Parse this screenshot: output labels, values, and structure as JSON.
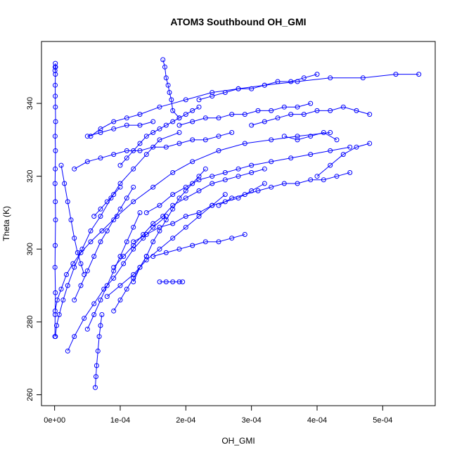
{
  "chart_data": {
    "type": "scatter",
    "title": "ATOM3 Southbound OH_GMI",
    "xlabel": "OH_GMI",
    "ylabel": "Theta (K)",
    "xlim": [
      -2e-05,
      0.00058
    ],
    "ylim": [
      257,
      357
    ],
    "x_ticks": [
      0,
      0.0001,
      0.0002,
      0.0003,
      0.0004,
      0.0005
    ],
    "x_tick_labels": [
      "0e+00",
      "1e-04",
      "2e-04",
      "3e-04",
      "4e-04",
      "5e-04"
    ],
    "y_ticks": [
      260,
      280,
      300,
      320,
      340
    ],
    "y_tick_labels": [
      "260",
      "280",
      "300",
      "320",
      "340"
    ],
    "grid": false,
    "legend": "none",
    "series_color": "#0000ff",
    "series": [
      {
        "x": [
          5e-07,
          8e-07,
          1.2e-06,
          6e-07,
          9e-07,
          1.4e-06,
          1.1e-06,
          7e-07,
          1e-06,
          1.3e-06,
          8e-07,
          1.5e-06,
          1.2e-06,
          1e-06,
          9e-07,
          1.2e-06,
          1.4e-06,
          1.1e-06,
          8e-07,
          6e-07
        ],
        "y": [
          276,
          282,
          288,
          295,
          301,
          308,
          313,
          318,
          322,
          327,
          331,
          335,
          339,
          342,
          345,
          348,
          350,
          351,
          350,
          349
        ]
      },
      {
        "x": [
          8e-07,
          4e-06,
          1e-05,
          1.8e-05,
          2.8e-05,
          4e-05,
          5.5e-05,
          7.2e-05,
          9.5e-05,
          0.00012,
          0.00015,
          0.00018,
          0.00021,
          0.00025,
          0.00029,
          0.00033,
          0.00037,
          0.00042
        ],
        "y": [
          283,
          286,
          289,
          293,
          296,
          299,
          302,
          305,
          309,
          313,
          317,
          321,
          324,
          327,
          329,
          330,
          331,
          332
        ]
      },
      {
        "x": [
          1.2e-06,
          3e-06,
          7e-06,
          1.3e-05,
          2e-05,
          3e-05,
          4.2e-05,
          5.5e-05,
          7e-05,
          8.6e-05,
          0.0001,
          0.00012,
          0.00014,
          0.00016,
          0.00019
        ],
        "y": [
          276,
          279,
          282,
          286,
          290,
          295,
          300,
          305,
          309,
          314,
          318,
          322,
          326,
          330,
          332
        ]
      },
      {
        "x": [
          5.5e-05,
          7e-05,
          9e-05,
          0.00011,
          0.00013,
          0.00016,
          0.0002,
          0.00024,
          0.00028,
          0.00032,
          0.00037,
          0.00042,
          0.00047,
          0.00052,
          0.000555
        ],
        "y": [
          331,
          333,
          335,
          336,
          337,
          339,
          341,
          343,
          344,
          345,
          346,
          347,
          347,
          348,
          348
        ]
      },
      {
        "x": [
          0.000165,
          0.000168,
          0.00017,
          0.000173,
          0.000175,
          0.000178,
          0.00018,
          0.00019
        ],
        "y": [
          352,
          350,
          347,
          345,
          343,
          341,
          338,
          336
        ]
      },
      {
        "x": [
          6.2e-05,
          6.3e-05,
          6.4e-05,
          6.6e-05,
          6.8e-05,
          7e-05,
          7.2e-05
        ],
        "y": [
          262,
          265,
          268,
          272,
          276,
          279,
          282
        ]
      },
      {
        "x": [
          0.00016,
          0.00017,
          0.00018,
          0.00019,
          0.000195
        ],
        "y": [
          291,
          291,
          291,
          291,
          291
        ]
      },
      {
        "x": [
          2e-05,
          3e-05,
          4.5e-05,
          6e-05,
          7.5e-05,
          9e-05,
          0.000105,
          0.00012,
          0.000135,
          0.00015,
          0.00017
        ],
        "y": [
          272,
          276,
          281,
          285,
          289,
          292,
          296,
          300,
          303,
          306,
          309
        ]
      },
      {
        "x": [
          3e-05,
          5e-05,
          7e-05,
          9e-05,
          0.00011,
          0.00013,
          0.00015,
          0.00017,
          0.00019,
          0.00021,
          0.00023,
          0.00025,
          0.00027
        ],
        "y": [
          322,
          324,
          325,
          326,
          327,
          327,
          328,
          328,
          329,
          330,
          330,
          331,
          332
        ]
      },
      {
        "x": [
          0.00012,
          0.00014,
          0.00016,
          0.00018,
          0.0002,
          0.00022,
          0.00024,
          0.00026,
          0.00028,
          0.0003,
          0.00032
        ],
        "y": [
          302,
          304,
          306,
          307,
          309,
          310,
          312,
          313,
          314,
          316,
          318
        ]
      },
      {
        "x": [
          9e-05,
          0.000105,
          0.00012,
          0.000135,
          0.00015,
          0.000165,
          0.00018,
          0.0002,
          0.00022,
          0.00024,
          0.00026,
          0.00028,
          0.0003,
          0.00032
        ],
        "y": [
          295,
          298,
          301,
          304,
          307,
          309,
          312,
          314,
          316,
          318,
          319,
          320,
          321,
          322
        ]
      },
      {
        "x": [
          0.00014,
          0.00016,
          0.00018,
          0.0002,
          0.00022,
          0.00024,
          0.00026,
          0.00028,
          0.0003,
          0.00033,
          0.00036,
          0.00039,
          0.00042,
          0.00045
        ],
        "y": [
          310,
          312,
          315,
          317,
          319,
          320,
          321,
          322,
          323,
          324,
          325,
          326,
          327,
          328
        ]
      },
      {
        "x": [
          8e-05,
          0.0001,
          0.00012,
          0.00014,
          0.00016,
          0.00018,
          0.0002,
          0.00022,
          0.00024,
          0.00026
        ],
        "y": [
          287,
          290,
          293,
          297,
          300,
          303,
          306,
          309,
          312,
          315
        ]
      },
      {
        "x": [
          0.00022,
          0.00024,
          0.00026,
          0.00028,
          0.0003,
          0.00032,
          0.00034,
          0.00036,
          0.00038,
          0.0004
        ],
        "y": [
          341,
          342,
          343,
          344,
          344,
          345,
          346,
          346,
          347,
          348
        ]
      },
      {
        "x": [
          0.00019,
          0.00021,
          0.00023,
          0.00025,
          0.00027,
          0.00029,
          0.00031,
          0.00033,
          0.00035,
          0.00037,
          0.00039
        ],
        "y": [
          334,
          335,
          336,
          336,
          337,
          337,
          338,
          338,
          339,
          339,
          340
        ]
      },
      {
        "x": [
          0.0003,
          0.00032,
          0.00034,
          0.00036,
          0.00038,
          0.0004,
          0.00042,
          0.00044,
          0.00046,
          0.00048
        ],
        "y": [
          334,
          335,
          336,
          337,
          337,
          338,
          338,
          339,
          338,
          337
        ]
      },
      {
        "x": [
          0.0001,
          0.00011,
          0.00012,
          0.00013,
          0.00014,
          0.00015,
          0.00016,
          0.00017,
          0.00018,
          0.00019,
          0.0002,
          0.00021,
          0.00022
        ],
        "y": [
          323,
          325,
          327,
          329,
          331,
          332,
          333,
          334,
          335,
          336,
          337,
          338,
          339
        ]
      },
      {
        "x": [
          5e-05,
          6e-05,
          7e-05,
          8e-05,
          9e-05,
          0.0001,
          0.00011,
          0.00012,
          0.00013
        ],
        "y": [
          278,
          282,
          286,
          290,
          294,
          298,
          302,
          306,
          310
        ]
      },
      {
        "x": [
          3e-05,
          4e-05,
          5e-05,
          6e-05,
          7e-05,
          8e-05,
          9e-05,
          0.0001,
          0.00011,
          0.00012
        ],
        "y": [
          286,
          290,
          294,
          298,
          302,
          305,
          308,
          311,
          314,
          317
        ]
      },
      {
        "x": [
          0.00012,
          0.00013,
          0.00014,
          0.00015,
          0.00016,
          0.00017,
          0.00018,
          0.00019,
          0.0002,
          0.00021,
          0.00022,
          0.00023
        ],
        "y": [
          291,
          295,
          298,
          302,
          305,
          308,
          311,
          314,
          316,
          318,
          320,
          322
        ]
      },
      {
        "x": [
          0.00025,
          0.00027,
          0.00029,
          0.00031,
          0.00033,
          0.00035,
          0.00037,
          0.00039,
          0.00041,
          0.00043,
          0.00045
        ],
        "y": [
          312,
          314,
          315,
          316,
          317,
          318,
          318,
          319,
          319,
          320,
          321
        ]
      },
      {
        "x": [
          5e-05,
          7e-05,
          9e-05,
          0.00011,
          0.00013,
          0.00015
        ],
        "y": [
          331,
          332,
          333,
          334,
          334,
          335
        ]
      },
      {
        "x": [
          1e-05,
          1.5e-05,
          2e-05,
          2.5e-05,
          3e-05,
          3.5e-05,
          4e-05,
          4.5e-05
        ],
        "y": [
          323,
          318,
          313,
          308,
          303,
          299,
          296,
          293
        ]
      },
      {
        "x": [
          0.00015,
          0.00017,
          0.00019,
          0.00021,
          0.00023,
          0.00025,
          0.00027,
          0.00029
        ],
        "y": [
          298,
          299,
          300,
          301,
          302,
          302,
          303,
          304
        ]
      },
      {
        "x": [
          0.00035,
          0.00037,
          0.00039,
          0.00041,
          0.00043
        ],
        "y": [
          331,
          330,
          331,
          332,
          330
        ]
      },
      {
        "x": [
          0.0004,
          0.00042,
          0.00044,
          0.00046,
          0.00048
        ],
        "y": [
          320,
          323,
          326,
          328,
          329
        ]
      },
      {
        "x": [
          9e-05,
          0.0001,
          0.00011,
          0.00012,
          0.00013,
          0.00014
        ],
        "y": [
          283,
          286,
          289,
          292,
          295,
          298
        ]
      },
      {
        "x": [
          6e-05,
          7e-05,
          8e-05,
          9e-05,
          0.0001
        ],
        "y": [
          309,
          311,
          313,
          315,
          317
        ]
      }
    ]
  }
}
